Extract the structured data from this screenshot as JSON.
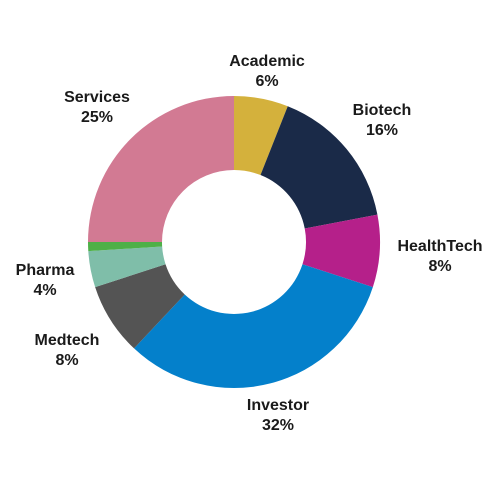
{
  "chart_data": {
    "type": "pie",
    "title": "",
    "donut": true,
    "legend": "none",
    "slices": [
      {
        "name": "Academic",
        "label": "6%",
        "value": 6,
        "color": "#D4B13C"
      },
      {
        "name": "Biotech",
        "label": "16%",
        "value": 16,
        "color": "#1A2A48"
      },
      {
        "name": "HealthTech",
        "label": "8%",
        "value": 8,
        "color": "#B5208A"
      },
      {
        "name": "Investor",
        "label": "32%",
        "value": 32,
        "color": "#0480CB"
      },
      {
        "name": "Medtech",
        "label": "8%",
        "value": 8,
        "color": "#545454"
      },
      {
        "name": "Pharma",
        "label": "4%",
        "value": 4,
        "color": "#7FBEA9"
      },
      {
        "name": "",
        "label": "",
        "value": 1,
        "color": "#4EB047"
      },
      {
        "name": "Services",
        "label": "25%",
        "value": 25,
        "color": "#D27A93"
      }
    ]
  }
}
